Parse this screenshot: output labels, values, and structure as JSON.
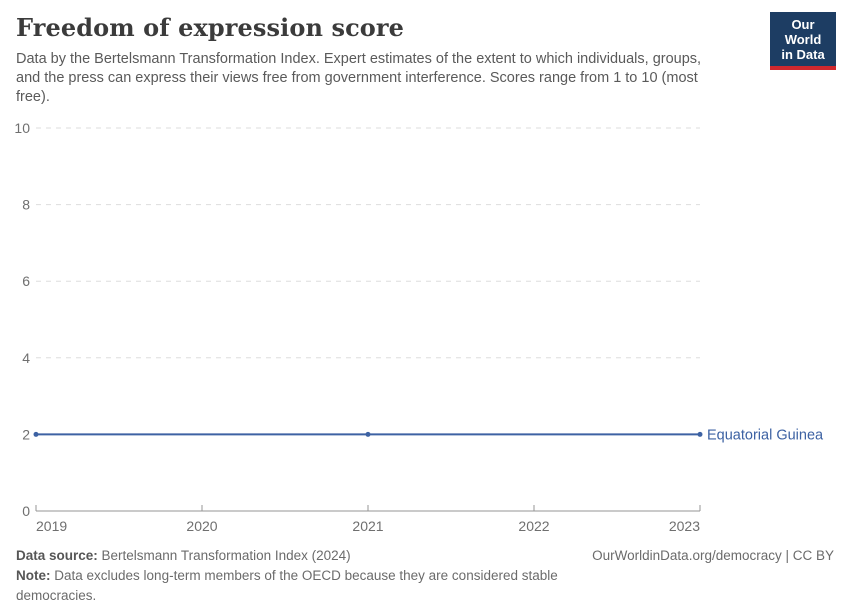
{
  "header": {
    "title": "Freedom of expression score",
    "subtitle": "Data by the Bertelsmann Transformation Index. Expert estimates of the extent to which individuals, groups, and the press can express their views free from government interference. Scores range from 1 to 10 (most free).",
    "logo": {
      "line1": "Our World",
      "line2": "in Data",
      "bg_color": "#1d3d63",
      "accent_color": "#d0282d"
    }
  },
  "chart_data": {
    "type": "line",
    "title": "Freedom of expression score",
    "x": [
      2019,
      2021,
      2023
    ],
    "series": [
      {
        "name": "Equatorial Guinea",
        "values": [
          2,
          2,
          2
        ],
        "color": "#3d62a3"
      }
    ],
    "xlim": [
      2019,
      2023
    ],
    "ylim": [
      0,
      10
    ],
    "yticks": [
      0,
      2,
      4,
      6,
      8,
      10
    ],
    "xticks": [
      2019,
      2020,
      2021,
      2022,
      2023
    ],
    "grid": "horizontal-dashed",
    "legend_position": "label-at-line-end",
    "colors": {
      "gridline": "#dddddd",
      "axis": "#949494",
      "tick_label": "#6f6f6f"
    }
  },
  "footer": {
    "source_label": "Data source:",
    "source_text": " Bertelsmann Transformation Index (2024)",
    "note_label": "Note:",
    "note_text": " Data excludes long-term members of the OECD because they are considered stable democracies.",
    "link": "OurWorldinData.org/democracy | CC BY"
  }
}
